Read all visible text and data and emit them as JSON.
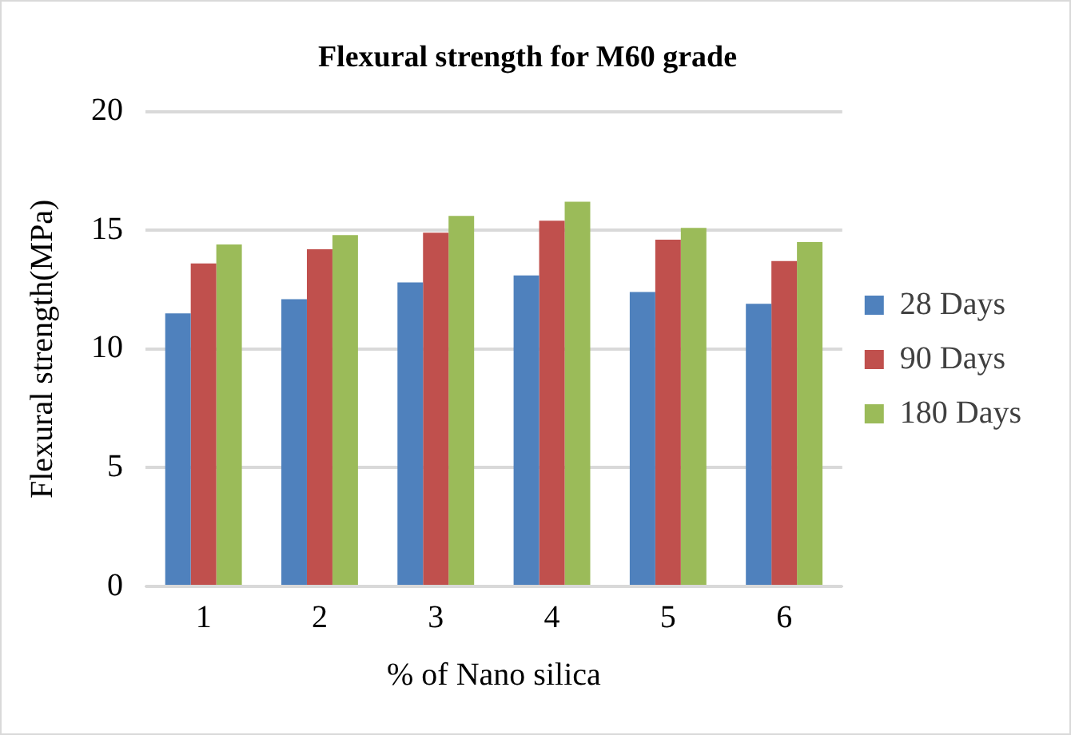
{
  "chart_data": {
    "type": "bar",
    "title": "Flexural strength for M60 grade",
    "xlabel": "% of Nano silica",
    "ylabel": "Flexural strength(MPa)",
    "categories": [
      "1",
      "2",
      "3",
      "4",
      "5",
      "6"
    ],
    "series": [
      {
        "name": "28 Days",
        "color": "#4f81bd",
        "values": [
          11.5,
          12.1,
          12.8,
          13.1,
          12.4,
          11.9
        ]
      },
      {
        "name": "90 Days",
        "color": "#c0504d",
        "values": [
          13.6,
          14.2,
          14.9,
          15.4,
          14.6,
          13.7
        ]
      },
      {
        "name": "180 Days",
        "color": "#9bbb59",
        "values": [
          14.4,
          14.8,
          15.6,
          16.2,
          15.1,
          14.5
        ]
      }
    ],
    "ylim": [
      0,
      20
    ],
    "yticks": [
      0,
      5,
      10,
      15,
      20
    ],
    "grid": "y",
    "legend": "right"
  }
}
